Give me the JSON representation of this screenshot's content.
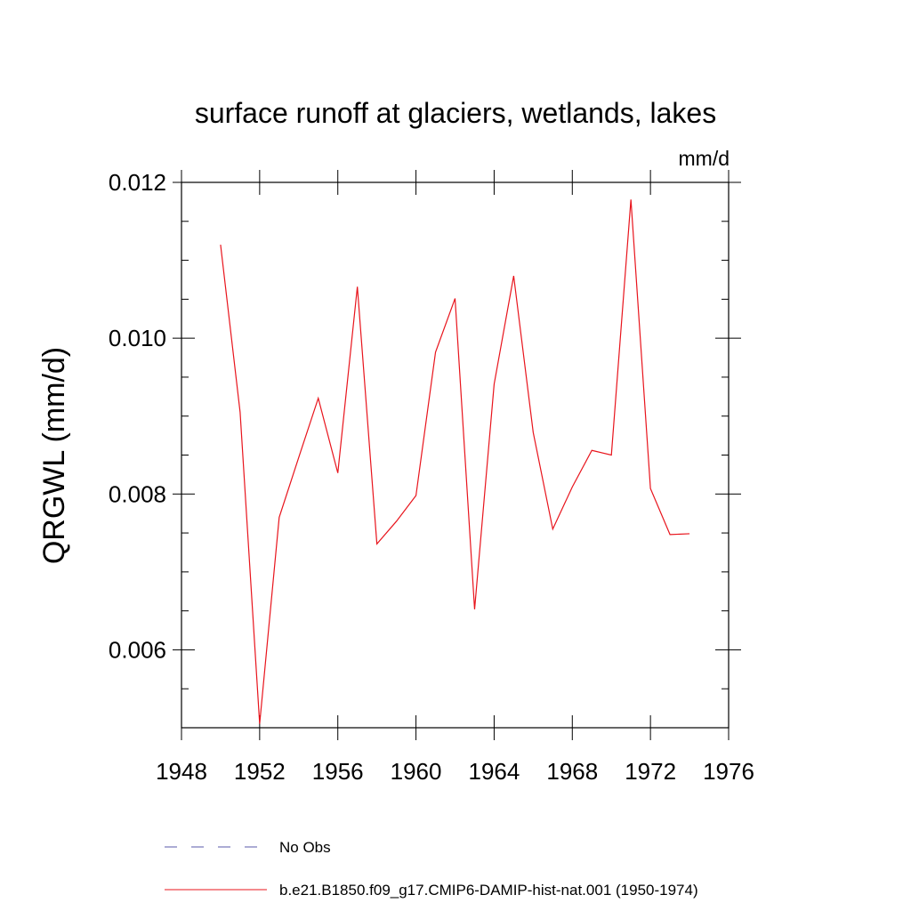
{
  "chart_data": {
    "type": "line",
    "title": "surface runoff at glaciers, wetlands, lakes",
    "units_label": "mm/d",
    "xlabel": "",
    "ylabel": "QRGWL  (mm/d)",
    "xlim": [
      1948,
      1976
    ],
    "ylim": [
      0.005,
      0.012
    ],
    "x_ticks": [
      "1948",
      "1952",
      "1956",
      "1960",
      "1964",
      "1968",
      "1972",
      "1976"
    ],
    "y_ticks": [
      "0.006",
      "0.008",
      "0.010",
      "0.012"
    ],
    "grid": false,
    "legend_position": "bottom",
    "series": [
      {
        "name": "No Obs",
        "color": "#5a5aa8",
        "dash": "dashed",
        "x": [],
        "values": []
      },
      {
        "name": "b.e21.B1850.f09_g17.CMIP6-DAMIP-hist-nat.001 (1950-1974)",
        "color": "#e8141c",
        "dash": "solid",
        "x": [
          1950,
          1951,
          1952,
          1953,
          1954,
          1955,
          1956,
          1957,
          1958,
          1959,
          1960,
          1961,
          1962,
          1963,
          1964,
          1965,
          1966,
          1967,
          1968,
          1969,
          1970,
          1971,
          1972,
          1973,
          1974
        ],
        "values": [
          0.0112,
          0.00905,
          0.00505,
          0.0077,
          0.00847,
          0.00923,
          0.00827,
          0.01066,
          0.00736,
          0.00765,
          0.00798,
          0.00982,
          0.01051,
          0.00652,
          0.00941,
          0.0108,
          0.00879,
          0.00755,
          0.00809,
          0.00856,
          0.0085,
          0.01178,
          0.00807,
          0.00748,
          0.00749
        ]
      }
    ]
  }
}
